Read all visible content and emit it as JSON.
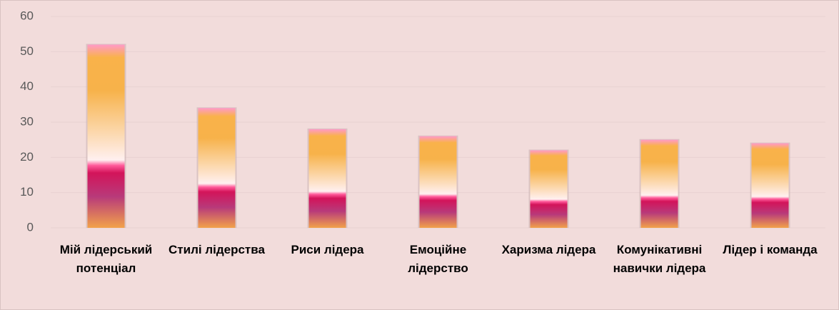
{
  "chart_data": {
    "type": "bar",
    "categories": [
      "Мій лідерський потенціал",
      "Стилі лідерства",
      "Риси лідера",
      "Емоційне лідерство",
      "Харизма лідера",
      "Комунікативні навички лідера",
      "Лідер і команда"
    ],
    "values": [
      52,
      34,
      28,
      26,
      22,
      25,
      24
    ],
    "ylim": [
      0,
      60
    ],
    "yticks": [
      0,
      10,
      20,
      30,
      40,
      50,
      60
    ],
    "grid": true
  }
}
